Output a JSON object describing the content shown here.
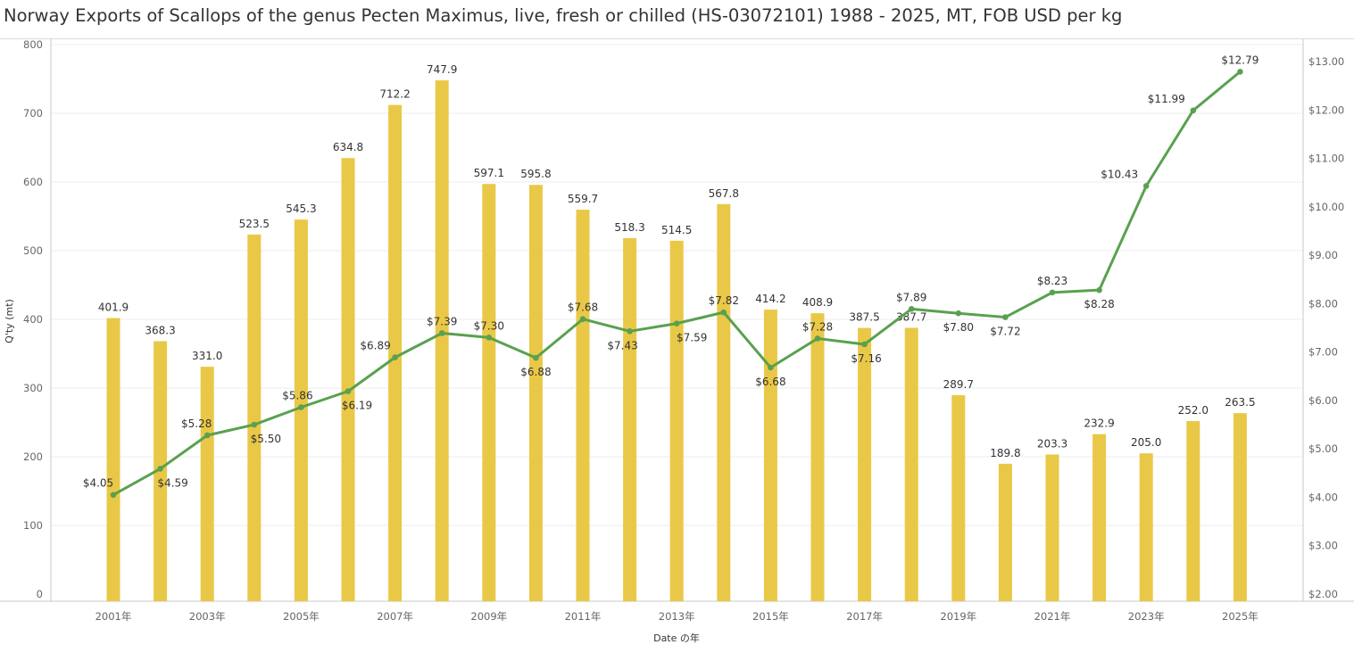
{
  "title": "Norway Exports of Scallops of the genus Pecten Maximus, live, fresh or chilled (HS-03072101) 1988 - 2025, MT, FOB USD per kg",
  "colors": {
    "bar": "#EAC847",
    "line": "#59A14F",
    "grid": "#eeeeee",
    "axis": "#c8c8c8"
  },
  "chart_data": {
    "type": "bar",
    "title": "Norway Exports of Scallops of the genus Pecten Maximus, live, fresh or chilled (HS-03072101) 1988 - 2025, MT, FOB USD per kg",
    "xlabel": "Date の年",
    "ylabel": "Q'ty (mt)",
    "ylim": [
      0,
      800
    ],
    "y2lim": [
      2,
      13
    ],
    "yticks": [
      "0",
      "100",
      "200",
      "300",
      "400",
      "500",
      "600",
      "700",
      "800"
    ],
    "y2ticks": [
      "$2.00",
      "$3.00",
      "$4.00",
      "$5.00",
      "$6.00",
      "$7.00",
      "$8.00",
      "$9.00",
      "$10.00",
      "$11.00",
      "$12.00",
      "$13.00"
    ],
    "x_tick_labels": [
      "2001年",
      "2003年",
      "2005年",
      "2007年",
      "2009年",
      "2011年",
      "2013年",
      "2015年",
      "2017年",
      "2019年",
      "2021年",
      "2023年",
      "2025年"
    ],
    "categories": [
      2001,
      2002,
      2003,
      2004,
      2005,
      2006,
      2007,
      2008,
      2009,
      2010,
      2011,
      2012,
      2013,
      2014,
      2015,
      2016,
      2017,
      2018,
      2019,
      2020,
      2021,
      2022,
      2023,
      2024,
      2025
    ],
    "grid": true,
    "series": [
      {
        "type": "bar",
        "axis": "left",
        "values": [
          401.9,
          368.3,
          331.0,
          523.5,
          545.3,
          634.8,
          712.2,
          747.9,
          597.1,
          595.8,
          559.7,
          518.3,
          514.5,
          567.8,
          414.2,
          408.9,
          387.5,
          387.7,
          289.7,
          189.8,
          203.3,
          232.9,
          205.0,
          252.0,
          263.5
        ],
        "labels": [
          "401.9",
          "368.3",
          "331.0",
          "523.5",
          "545.3",
          "634.8",
          "712.2",
          "747.9",
          "597.1",
          "595.8",
          "559.7",
          "518.3",
          "514.5",
          "567.8",
          "414.2",
          "408.9",
          "387.5",
          "387.7",
          "289.7",
          "189.8",
          "203.3",
          "232.9",
          "205.0",
          "252.0",
          "263.5"
        ]
      },
      {
        "type": "line",
        "axis": "right",
        "values": [
          4.05,
          4.59,
          5.28,
          5.5,
          5.86,
          6.19,
          6.89,
          7.39,
          7.3,
          6.88,
          7.68,
          7.43,
          7.59,
          7.82,
          6.68,
          7.28,
          7.16,
          7.89,
          7.8,
          7.72,
          8.23,
          8.28,
          10.43,
          11.99,
          12.79
        ],
        "labels": [
          "$4.05",
          "$4.59",
          "$5.28",
          "$5.50",
          "$5.86",
          "$6.19",
          "$6.89",
          "$7.39",
          "$7.30",
          "$6.88",
          "$7.68",
          "$7.43",
          "$7.59",
          "$7.82",
          "$6.68",
          "$7.28",
          "$7.16",
          "$7.89",
          "$7.80",
          "$7.72",
          "$8.23",
          "$8.28",
          "$10.43",
          "$11.99",
          "$12.79"
        ]
      }
    ]
  }
}
